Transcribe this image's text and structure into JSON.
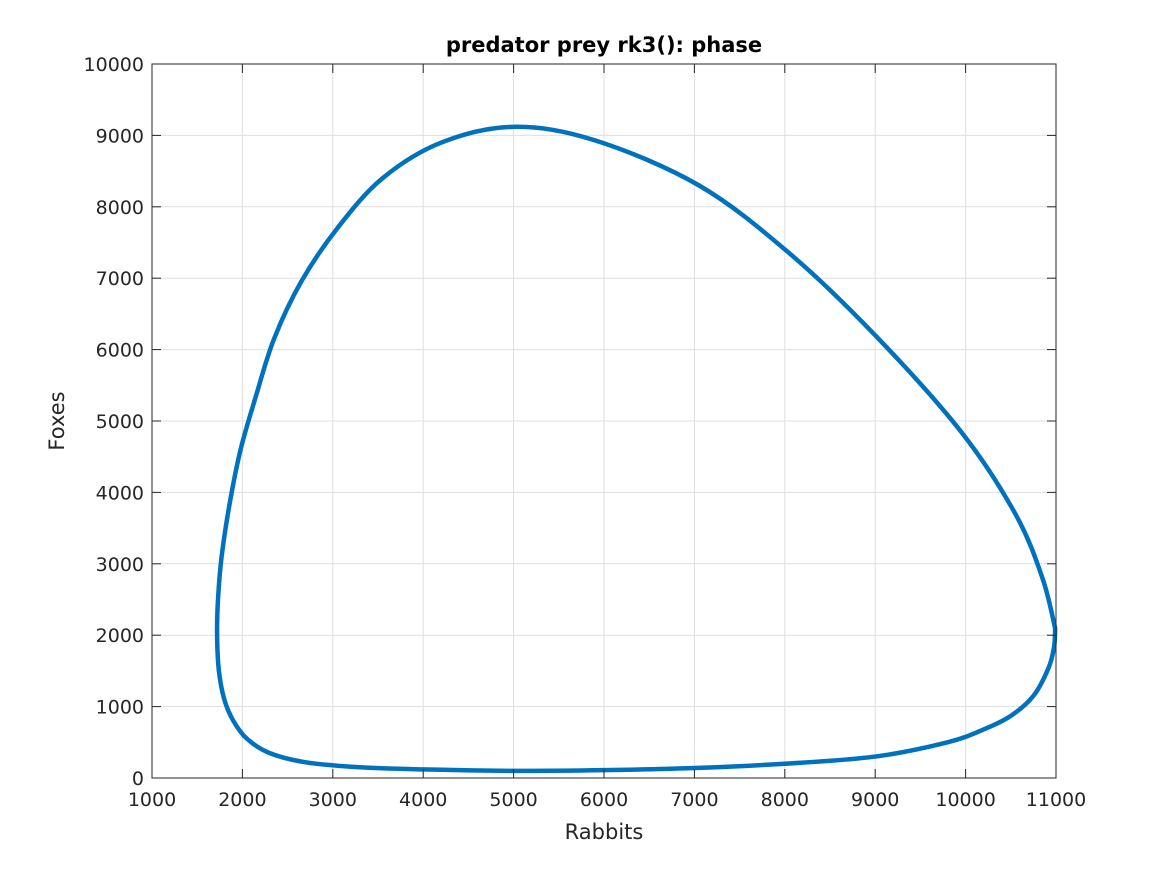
{
  "chart_data": {
    "type": "line",
    "title": "predator prey rk3(): phase",
    "xlabel": "Rabbits",
    "ylabel": "Foxes",
    "xlim": [
      1000,
      11000
    ],
    "ylim": [
      0,
      10000
    ],
    "xticks": [
      1000,
      2000,
      3000,
      4000,
      5000,
      6000,
      7000,
      8000,
      9000,
      10000,
      11000
    ],
    "yticks": [
      0,
      1000,
      2000,
      3000,
      4000,
      5000,
      6000,
      7000,
      8000,
      9000,
      10000
    ],
    "grid": true,
    "box": true,
    "series": [
      {
        "color": "#0072BD",
        "x": [
          10990,
          10850,
          10550,
          9950,
          9000,
          8050,
          7050,
          5900,
          5000,
          4200,
          3550,
          3050,
          2650,
          2350,
          2150,
          1980,
          1860,
          1770,
          1730,
          1720,
          1740,
          1800,
          1900,
          2050,
          2300,
          2700,
          3300,
          4000,
          5000,
          6000,
          7000,
          8000,
          9000,
          9800,
          10200,
          10500,
          10750,
          10920,
          10980,
          10990
        ],
        "y": [
          2100,
          2800,
          3700,
          4850,
          6200,
          7350,
          8300,
          8930,
          9120,
          8900,
          8400,
          7700,
          6950,
          6150,
          5350,
          4600,
          3850,
          3100,
          2500,
          2000,
          1500,
          1100,
          800,
          550,
          350,
          220,
          150,
          120,
          100,
          110,
          140,
          200,
          300,
          500,
          680,
          870,
          1150,
          1550,
          1850,
          2100
        ]
      }
    ]
  }
}
